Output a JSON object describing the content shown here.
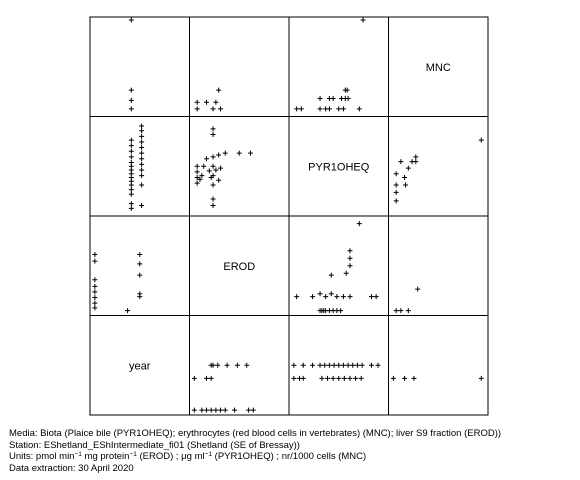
{
  "chart_data": {
    "type": "scatter-matrix",
    "variables": [
      "MNC",
      "PYR1OHEQ",
      "EROD",
      "year"
    ],
    "marker": "+",
    "panels": {
      "MNC_vs_year": [
        [
          0.41,
          1.0
        ],
        [
          0.41,
          0.05
        ],
        [
          0.41,
          0.14
        ],
        [
          0.41,
          0.25
        ]
      ],
      "MNC_vs_EROD": [
        [
          0.28,
          0.25
        ],
        [
          0.05,
          0.12
        ],
        [
          0.15,
          0.12
        ],
        [
          0.25,
          0.12
        ],
        [
          0.05,
          0.05
        ],
        [
          0.22,
          0.05
        ],
        [
          0.3,
          0.05
        ]
      ],
      "MNC_vs_PYR1OHEQ": [
        [
          0.76,
          1.0
        ],
        [
          0.57,
          0.25
        ],
        [
          0.59,
          0.25
        ],
        [
          0.3,
          0.16
        ],
        [
          0.4,
          0.16
        ],
        [
          0.44,
          0.16
        ],
        [
          0.53,
          0.16
        ],
        [
          0.57,
          0.16
        ],
        [
          0.6,
          0.16
        ],
        [
          0.05,
          0.05
        ],
        [
          0.1,
          0.05
        ],
        [
          0.3,
          0.05
        ],
        [
          0.36,
          0.05
        ],
        [
          0.4,
          0.05
        ],
        [
          0.5,
          0.05
        ],
        [
          0.55,
          0.05
        ],
        [
          0.72,
          0.05
        ]
      ],
      "PYR1OHEQ_vs_year": [
        [
          0.41,
          0.78
        ],
        [
          0.41,
          0.72
        ],
        [
          0.41,
          0.66
        ],
        [
          0.41,
          0.6
        ],
        [
          0.41,
          0.54
        ],
        [
          0.41,
          0.5
        ],
        [
          0.41,
          0.46
        ],
        [
          0.41,
          0.42
        ],
        [
          0.41,
          0.38
        ],
        [
          0.41,
          0.34
        ],
        [
          0.41,
          0.3
        ],
        [
          0.41,
          0.25
        ],
        [
          0.41,
          0.2
        ],
        [
          0.41,
          0.1
        ],
        [
          0.41,
          0.05
        ],
        [
          0.52,
          0.93
        ],
        [
          0.52,
          0.88
        ],
        [
          0.52,
          0.82
        ],
        [
          0.52,
          0.76
        ],
        [
          0.52,
          0.7
        ],
        [
          0.52,
          0.64
        ],
        [
          0.52,
          0.58
        ],
        [
          0.52,
          0.52
        ],
        [
          0.52,
          0.46
        ],
        [
          0.52,
          0.4
        ],
        [
          0.52,
          0.3
        ],
        [
          0.52,
          0.08
        ]
      ],
      "PYR1OHEQ_vs_EROD": [
        [
          0.22,
          0.9
        ],
        [
          0.22,
          0.84
        ],
        [
          0.22,
          0.6
        ],
        [
          0.22,
          0.5
        ],
        [
          0.22,
          0.4
        ],
        [
          0.22,
          0.3
        ],
        [
          0.22,
          0.15
        ],
        [
          0.22,
          0.08
        ],
        [
          0.05,
          0.5
        ],
        [
          0.05,
          0.44
        ],
        [
          0.05,
          0.38
        ],
        [
          0.05,
          0.32
        ],
        [
          0.08,
          0.36
        ],
        [
          0.1,
          0.4
        ],
        [
          0.28,
          0.62
        ],
        [
          0.35,
          0.64
        ],
        [
          0.5,
          0.64
        ],
        [
          0.62,
          0.64
        ],
        [
          0.18,
          0.45
        ],
        [
          0.12,
          0.5
        ],
        [
          0.15,
          0.58
        ],
        [
          0.3,
          0.48
        ],
        [
          0.25,
          0.46
        ],
        [
          0.2,
          0.38
        ],
        [
          0.28,
          0.35
        ]
      ],
      "PYR1OHEQ_vs_MNC": [
        [
          0.05,
          0.42
        ],
        [
          0.05,
          0.3
        ],
        [
          0.05,
          0.22
        ],
        [
          0.05,
          0.13
        ],
        [
          0.1,
          0.55
        ],
        [
          0.14,
          0.38
        ],
        [
          0.15,
          0.3
        ],
        [
          0.18,
          0.48
        ],
        [
          0.22,
          0.55
        ],
        [
          0.26,
          0.6
        ],
        [
          0.26,
          0.55
        ],
        [
          0.96,
          0.78
        ]
      ],
      "EROD_vs_year": [
        [
          0.02,
          0.62
        ],
        [
          0.02,
          0.55
        ],
        [
          0.02,
          0.35
        ],
        [
          0.02,
          0.28
        ],
        [
          0.02,
          0.22
        ],
        [
          0.02,
          0.16
        ],
        [
          0.02,
          0.1
        ],
        [
          0.02,
          0.05
        ],
        [
          0.37,
          0.02
        ],
        [
          0.5,
          0.62
        ],
        [
          0.5,
          0.52
        ],
        [
          0.5,
          0.4
        ],
        [
          0.5,
          0.2
        ],
        [
          0.5,
          0.17
        ]
      ],
      "EROD_vs_PYR1OHEQ": [
        [
          0.05,
          0.17
        ],
        [
          0.22,
          0.17
        ],
        [
          0.3,
          0.2
        ],
        [
          0.36,
          0.17
        ],
        [
          0.42,
          0.2
        ],
        [
          0.48,
          0.17
        ],
        [
          0.55,
          0.17
        ],
        [
          0.62,
          0.17
        ],
        [
          0.85,
          0.17
        ],
        [
          0.9,
          0.17
        ],
        [
          0.3,
          0.02
        ],
        [
          0.32,
          0.02
        ],
        [
          0.34,
          0.02
        ],
        [
          0.36,
          0.02
        ],
        [
          0.4,
          0.02
        ],
        [
          0.44,
          0.02
        ],
        [
          0.48,
          0.02
        ],
        [
          0.52,
          0.02
        ],
        [
          0.42,
          0.4
        ],
        [
          0.58,
          0.42
        ],
        [
          0.62,
          0.5
        ],
        [
          0.62,
          0.58
        ],
        [
          0.62,
          0.66
        ],
        [
          0.72,
          0.95
        ]
      ],
      "EROD_vs_MNC": [
        [
          0.05,
          0.02
        ],
        [
          0.1,
          0.02
        ],
        [
          0.18,
          0.02
        ],
        [
          0.28,
          0.25
        ]
      ],
      "year_vs_EROD": [
        [
          0.2,
          0.5
        ],
        [
          0.22,
          0.5
        ],
        [
          0.27,
          0.5
        ],
        [
          0.37,
          0.5
        ],
        [
          0.48,
          0.5
        ],
        [
          0.58,
          0.5
        ],
        [
          0.02,
          0.36
        ],
        [
          0.15,
          0.36
        ],
        [
          0.2,
          0.36
        ],
        [
          0.02,
          0.02
        ],
        [
          0.1,
          0.02
        ],
        [
          0.15,
          0.02
        ],
        [
          0.2,
          0.02
        ],
        [
          0.25,
          0.02
        ],
        [
          0.3,
          0.02
        ],
        [
          0.35,
          0.02
        ],
        [
          0.45,
          0.02
        ],
        [
          0.6,
          0.02
        ],
        [
          0.65,
          0.02
        ]
      ],
      "year_vs_PYR1OHEQ": [
        [
          0.02,
          0.5
        ],
        [
          0.12,
          0.5
        ],
        [
          0.22,
          0.5
        ],
        [
          0.3,
          0.5
        ],
        [
          0.35,
          0.5
        ],
        [
          0.4,
          0.5
        ],
        [
          0.45,
          0.5
        ],
        [
          0.5,
          0.5
        ],
        [
          0.55,
          0.5
        ],
        [
          0.6,
          0.5
        ],
        [
          0.65,
          0.5
        ],
        [
          0.7,
          0.5
        ],
        [
          0.75,
          0.5
        ],
        [
          0.85,
          0.5
        ],
        [
          0.92,
          0.5
        ],
        [
          0.02,
          0.36
        ],
        [
          0.08,
          0.36
        ],
        [
          0.12,
          0.36
        ],
        [
          0.32,
          0.36
        ],
        [
          0.38,
          0.36
        ],
        [
          0.44,
          0.36
        ],
        [
          0.5,
          0.36
        ],
        [
          0.56,
          0.36
        ],
        [
          0.62,
          0.36
        ],
        [
          0.68,
          0.36
        ],
        [
          0.74,
          0.36
        ]
      ],
      "year_vs_MNC": [
        [
          0.02,
          0.36
        ],
        [
          0.14,
          0.36
        ],
        [
          0.24,
          0.36
        ],
        [
          0.96,
          0.36
        ]
      ]
    }
  },
  "footer": {
    "media": "Media: Biota (Plaice bile (PYR1OHEQ); erythrocytes (red blood cells in vertebrates) (MNC); liver S9 fraction (EROD))",
    "station": "Station: EShetland_EShIntermediate_fi01 (Shetland (SE of Bressay))",
    "units_prefix": "Units:  pmol min",
    "units_sup1": "−1",
    "units_mid1": " mg protein",
    "units_sup2": "−1",
    "units_mid2": " (EROD) ;  μg ml",
    "units_sup3": "−1",
    "units_suffix": " (PYR1OHEQ) ;  nr/1000 cells (MNC)",
    "extraction": "Data extraction: 30 April 2020"
  }
}
